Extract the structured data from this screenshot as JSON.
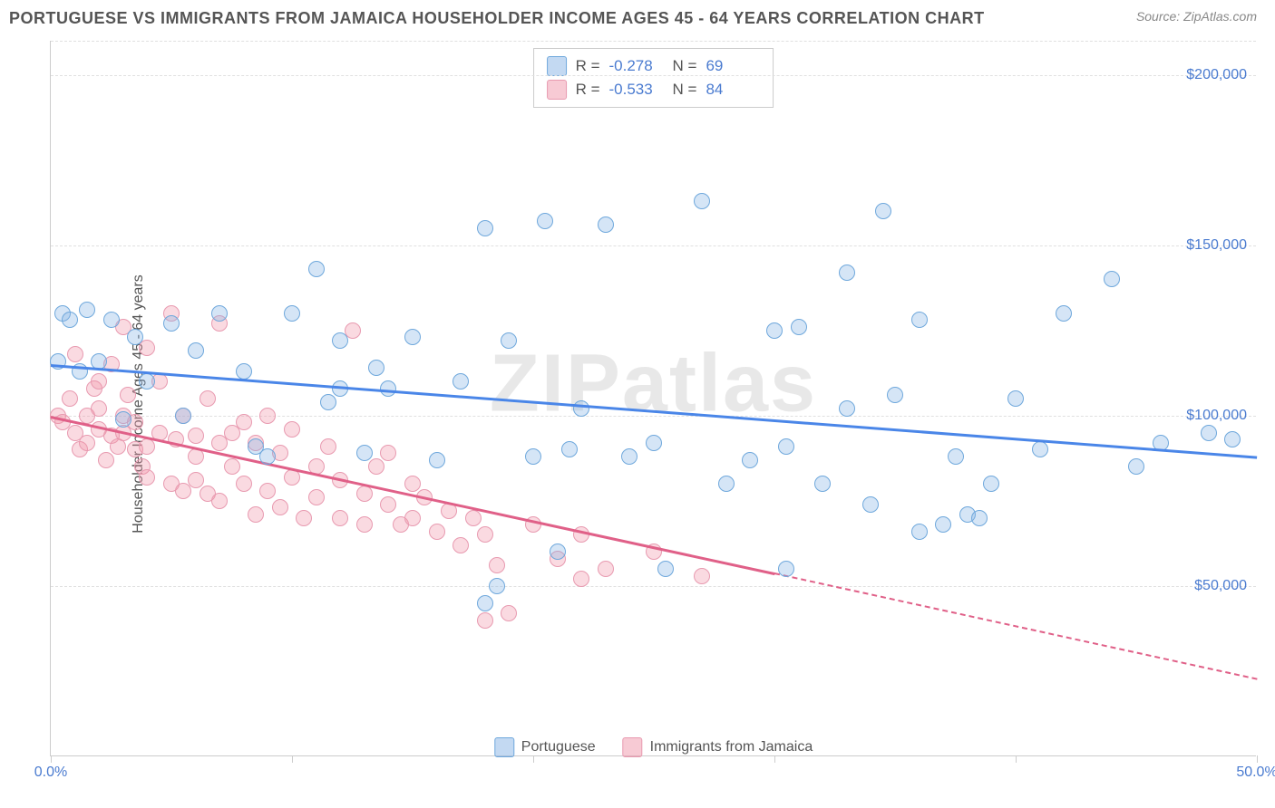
{
  "title": "PORTUGUESE VS IMMIGRANTS FROM JAMAICA HOUSEHOLDER INCOME AGES 45 - 64 YEARS CORRELATION CHART",
  "source": "Source: ZipAtlas.com",
  "watermark": "ZIPatlas",
  "chart": {
    "type": "scatter",
    "y_axis_label": "Householder Income Ages 45 - 64 years",
    "background_color": "#ffffff",
    "grid_color": "#e0e0e0",
    "axis_color": "#cccccc",
    "label_color": "#4a7bd0",
    "text_color": "#555555",
    "xlim": [
      0,
      50
    ],
    "ylim": [
      0,
      210000
    ],
    "x_ticks": [
      0,
      10,
      20,
      30,
      40,
      50
    ],
    "x_tick_labels": {
      "0": "0.0%",
      "50": "50.0%"
    },
    "y_gridlines": [
      50000,
      100000,
      150000,
      200000,
      210000
    ],
    "y_tick_labels": {
      "50000": "$50,000",
      "100000": "$100,000",
      "150000": "$150,000",
      "200000": "$200,000"
    },
    "marker_radius": 9,
    "marker_border_width": 1.5,
    "series": [
      {
        "name": "Portuguese",
        "color_fill": "rgba(135,180,230,0.35)",
        "color_border": "#6fa8dc",
        "color_line": "#4a86e8",
        "R": "-0.278",
        "N": "69",
        "trend": {
          "x1": 0,
          "y1": 115000,
          "x2": 50,
          "y2": 88000
        },
        "points": [
          [
            0.3,
            116000
          ],
          [
            0.5,
            130000
          ],
          [
            0.8,
            128000
          ],
          [
            1.2,
            113000
          ],
          [
            1.5,
            131000
          ],
          [
            2,
            116000
          ],
          [
            2.5,
            128000
          ],
          [
            3,
            99000
          ],
          [
            3.5,
            123000
          ],
          [
            4,
            110000
          ],
          [
            5,
            127000
          ],
          [
            5.5,
            100000
          ],
          [
            6,
            119000
          ],
          [
            7,
            130000
          ],
          [
            8,
            113000
          ],
          [
            8.5,
            91000
          ],
          [
            9,
            88000
          ],
          [
            10,
            130000
          ],
          [
            11,
            143000
          ],
          [
            11.5,
            104000
          ],
          [
            12,
            122000
          ],
          [
            12,
            108000
          ],
          [
            13,
            89000
          ],
          [
            13.5,
            114000
          ],
          [
            14,
            108000
          ],
          [
            15,
            123000
          ],
          [
            16,
            87000
          ],
          [
            17,
            110000
          ],
          [
            18,
            155000
          ],
          [
            18,
            45000
          ],
          [
            18.5,
            50000
          ],
          [
            19,
            122000
          ],
          [
            20,
            88000
          ],
          [
            20.5,
            157000
          ],
          [
            21,
            60000
          ],
          [
            21.5,
            90000
          ],
          [
            22,
            102000
          ],
          [
            23,
            156000
          ],
          [
            24,
            88000
          ],
          [
            25,
            92000
          ],
          [
            25.5,
            55000
          ],
          [
            27,
            163000
          ],
          [
            28,
            80000
          ],
          [
            29,
            87000
          ],
          [
            30,
            125000
          ],
          [
            30.5,
            91000
          ],
          [
            30.5,
            55000
          ],
          [
            31,
            126000
          ],
          [
            32,
            80000
          ],
          [
            33,
            102000
          ],
          [
            33,
            142000
          ],
          [
            34,
            74000
          ],
          [
            34.5,
            160000
          ],
          [
            35,
            106000
          ],
          [
            36,
            66000
          ],
          [
            36,
            128000
          ],
          [
            37,
            68000
          ],
          [
            37.5,
            88000
          ],
          [
            38,
            71000
          ],
          [
            38.5,
            70000
          ],
          [
            39,
            80000
          ],
          [
            40,
            105000
          ],
          [
            41,
            90000
          ],
          [
            42,
            130000
          ],
          [
            44,
            140000
          ],
          [
            45,
            85000
          ],
          [
            46,
            92000
          ],
          [
            48,
            95000
          ],
          [
            49,
            93000
          ]
        ]
      },
      {
        "name": "Immigrants from Jamaica",
        "color_fill": "rgba(240,150,170,0.35)",
        "color_border": "#e89ab0",
        "color_line": "#e06088",
        "R": "-0.533",
        "N": "84",
        "trend": {
          "x1": 0,
          "y1": 100000,
          "x2": 30,
          "y2": 54000
        },
        "trend_dash": {
          "x1": 30,
          "y1": 54000,
          "x2": 50,
          "y2": 23000
        },
        "points": [
          [
            0.3,
            100000
          ],
          [
            0.5,
            98000
          ],
          [
            0.8,
            105000
          ],
          [
            1,
            95000
          ],
          [
            1,
            118000
          ],
          [
            1.2,
            90000
          ],
          [
            1.5,
            100000
          ],
          [
            1.5,
            92000
          ],
          [
            1.8,
            108000
          ],
          [
            2,
            96000
          ],
          [
            2,
            110000
          ],
          [
            2,
            102000
          ],
          [
            2.3,
            87000
          ],
          [
            2.5,
            94000
          ],
          [
            2.5,
            115000
          ],
          [
            2.8,
            91000
          ],
          [
            3,
            126000
          ],
          [
            3,
            100000
          ],
          [
            3,
            95000
          ],
          [
            3.2,
            106000
          ],
          [
            3.5,
            90000
          ],
          [
            3.5,
            98000
          ],
          [
            3.8,
            85000
          ],
          [
            4,
            120000
          ],
          [
            4,
            91000
          ],
          [
            4,
            82000
          ],
          [
            4.5,
            95000
          ],
          [
            4.5,
            110000
          ],
          [
            5,
            80000
          ],
          [
            5,
            130000
          ],
          [
            5.2,
            93000
          ],
          [
            5.5,
            78000
          ],
          [
            5.5,
            100000
          ],
          [
            6,
            94000
          ],
          [
            6,
            81000
          ],
          [
            6,
            88000
          ],
          [
            6.5,
            105000
          ],
          [
            6.5,
            77000
          ],
          [
            7,
            127000
          ],
          [
            7,
            92000
          ],
          [
            7,
            75000
          ],
          [
            7.5,
            85000
          ],
          [
            7.5,
            95000
          ],
          [
            8,
            80000
          ],
          [
            8,
            98000
          ],
          [
            8.5,
            71000
          ],
          [
            8.5,
            92000
          ],
          [
            9,
            78000
          ],
          [
            9,
            100000
          ],
          [
            9.5,
            89000
          ],
          [
            9.5,
            73000
          ],
          [
            10,
            82000
          ],
          [
            10,
            96000
          ],
          [
            10.5,
            70000
          ],
          [
            11,
            85000
          ],
          [
            11,
            76000
          ],
          [
            11.5,
            91000
          ],
          [
            12,
            70000
          ],
          [
            12,
            81000
          ],
          [
            12.5,
            125000
          ],
          [
            13,
            77000
          ],
          [
            13,
            68000
          ],
          [
            13.5,
            85000
          ],
          [
            14,
            74000
          ],
          [
            14,
            89000
          ],
          [
            14.5,
            68000
          ],
          [
            15,
            80000
          ],
          [
            15,
            70000
          ],
          [
            15.5,
            76000
          ],
          [
            16,
            66000
          ],
          [
            16.5,
            72000
          ],
          [
            17,
            62000
          ],
          [
            17.5,
            70000
          ],
          [
            18,
            65000
          ],
          [
            18,
            40000
          ],
          [
            18.5,
            56000
          ],
          [
            19,
            42000
          ],
          [
            20,
            68000
          ],
          [
            21,
            58000
          ],
          [
            22,
            52000
          ],
          [
            22,
            65000
          ],
          [
            23,
            55000
          ],
          [
            25,
            60000
          ],
          [
            27,
            53000
          ]
        ]
      }
    ]
  },
  "legend_bottom": [
    "Portuguese",
    "Immigrants from Jamaica"
  ]
}
